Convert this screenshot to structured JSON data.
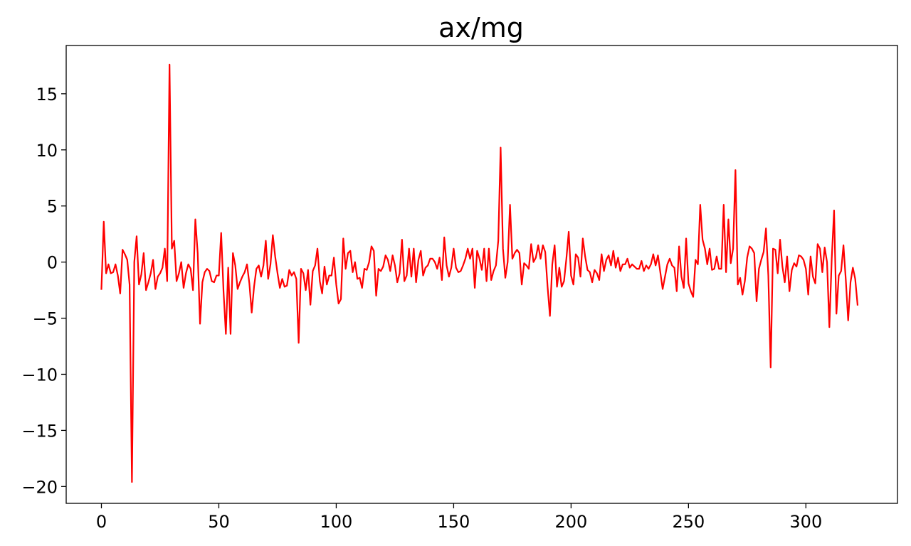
{
  "chart_data": {
    "type": "line",
    "title": "ax/mg",
    "xlabel": "",
    "ylabel": "",
    "xlim": [
      -15,
      339
    ],
    "ylim": [
      -21.5,
      19.3
    ],
    "grid": false,
    "x_ticks": [
      0,
      50,
      100,
      150,
      200,
      250,
      300
    ],
    "y_ticks": [
      -20,
      -15,
      -10,
      -5,
      0,
      5,
      10,
      15
    ],
    "x_tick_labels": [
      "0",
      "50",
      "100",
      "150",
      "200",
      "250",
      "300"
    ],
    "y_tick_labels": [
      "−20",
      "−15",
      "−10",
      "−5",
      "0",
      "5",
      "10",
      "15"
    ],
    "series": [
      {
        "color": "#ff0000",
        "x_start": 0,
        "x_step": 1,
        "values": [
          -2.4,
          3.6,
          -1.0,
          -0.2,
          -1.0,
          -0.9,
          -0.2,
          -1.2,
          -2.8,
          1.1,
          0.7,
          0.2,
          -2.0,
          -19.6,
          0.0,
          2.3,
          -2.0,
          -1.1,
          0.8,
          -2.5,
          -1.8,
          -1.0,
          0.2,
          -2.4,
          -1.3,
          -1.0,
          -0.5,
          1.2,
          -1.7,
          17.6,
          1.2,
          1.9,
          -1.7,
          -1.0,
          0.0,
          -2.3,
          -1.0,
          -0.2,
          -0.6,
          -2.5,
          3.8,
          0.8,
          -5.5,
          -1.8,
          -0.9,
          -0.6,
          -0.8,
          -1.7,
          -1.8,
          -1.2,
          -1.2,
          2.6,
          -2.6,
          -6.4,
          -0.5,
          -6.4,
          0.8,
          -0.3,
          -2.4,
          -1.8,
          -1.3,
          -0.9,
          -0.2,
          -1.9,
          -4.5,
          -2.2,
          -0.6,
          -0.3,
          -1.3,
          -0.3,
          1.9,
          -1.5,
          -0.2,
          2.4,
          0.5,
          -1.0,
          -2.3,
          -1.5,
          -2.2,
          -2.1,
          -0.7,
          -1.2,
          -0.9,
          -1.5,
          -7.2,
          -0.6,
          -1.0,
          -2.5,
          -0.7,
          -3.8,
          -0.8,
          -0.3,
          1.2,
          -1.7,
          -2.8,
          -0.4,
          -2.0,
          -1.2,
          -1.2,
          0.4,
          -2.0,
          -3.7,
          -3.3,
          2.1,
          -0.6,
          0.8,
          1.0,
          -0.9,
          0.0,
          -1.5,
          -1.4,
          -2.3,
          -0.6,
          -0.7,
          0.0,
          1.4,
          1.0,
          -3.0,
          -0.6,
          -0.8,
          -0.4,
          0.6,
          0.2,
          -0.8,
          0.6,
          -0.3,
          -1.8,
          -1.0,
          2.0,
          -1.7,
          -1.2,
          1.2,
          -1.3,
          1.2,
          -1.8,
          0.2,
          1.0,
          -1.2,
          -0.5,
          -0.3,
          0.3,
          0.3,
          0.0,
          -0.6,
          0.4,
          -1.6,
          2.2,
          -0.3,
          -1.3,
          -0.5,
          1.2,
          -0.5,
          -0.9,
          -0.8,
          -0.3,
          0.3,
          1.2,
          0.3,
          1.2,
          -2.3,
          1.0,
          0.3,
          -0.7,
          1.2,
          -1.7,
          1.2,
          -1.6,
          -0.8,
          -0.3,
          1.9,
          10.2,
          1.2,
          -1.4,
          0.0,
          5.1,
          0.3,
          0.8,
          1.1,
          0.8,
          -2.0,
          -0.1,
          -0.3,
          -0.6,
          1.6,
          0.0,
          0.4,
          1.5,
          0.3,
          1.5,
          0.9,
          -2.2,
          -4.8,
          -0.2,
          1.5,
          -2.2,
          -0.5,
          -2.2,
          -1.7,
          0.3,
          2.7,
          -1.2,
          -2.0,
          0.7,
          0.4,
          -1.3,
          2.1,
          0.5,
          -0.7,
          -0.9,
          -1.8,
          -0.7,
          -1.0,
          -1.6,
          0.7,
          -0.8,
          0.2,
          0.6,
          -0.3,
          1.0,
          -0.5,
          0.4,
          -0.8,
          -0.2,
          -0.2,
          0.3,
          -0.5,
          -0.2,
          -0.4,
          -0.6,
          -0.6,
          0.1,
          -0.8,
          -0.3,
          -0.6,
          -0.2,
          0.7,
          -0.3,
          0.6,
          -0.9,
          -2.4,
          -1.3,
          -0.2,
          0.3,
          -0.3,
          -0.5,
          -2.6,
          1.4,
          -1.3,
          -2.3,
          2.1,
          -1.9,
          -2.6,
          -3.1,
          0.2,
          -0.2,
          5.1,
          2.0,
          1.2,
          -0.2,
          1.2,
          -0.7,
          -0.6,
          0.5,
          -0.6,
          -0.6,
          5.1,
          -0.9,
          3.8,
          -0.1,
          1.2,
          8.2,
          -2.0,
          -1.4,
          -2.9,
          -1.7,
          0.4,
          1.4,
          1.2,
          0.8,
          -3.5,
          -0.6,
          0.2,
          0.9,
          3.0,
          -1.2,
          -9.4,
          1.2,
          1.1,
          -1.0,
          2.0,
          -0.4,
          -1.8,
          0.5,
          -2.6,
          -0.7,
          -0.1,
          -0.4,
          0.6,
          0.5,
          0.2,
          -0.6,
          -2.9,
          0.5,
          -1.3,
          -1.9,
          1.6,
          1.2,
          -0.9,
          1.3,
          0.0,
          -5.8,
          0.3,
          4.6,
          -4.6,
          -1.2,
          -0.8,
          1.5,
          -1.6,
          -5.2,
          -1.8,
          -0.5,
          -1.5,
          -3.8
        ]
      }
    ]
  }
}
